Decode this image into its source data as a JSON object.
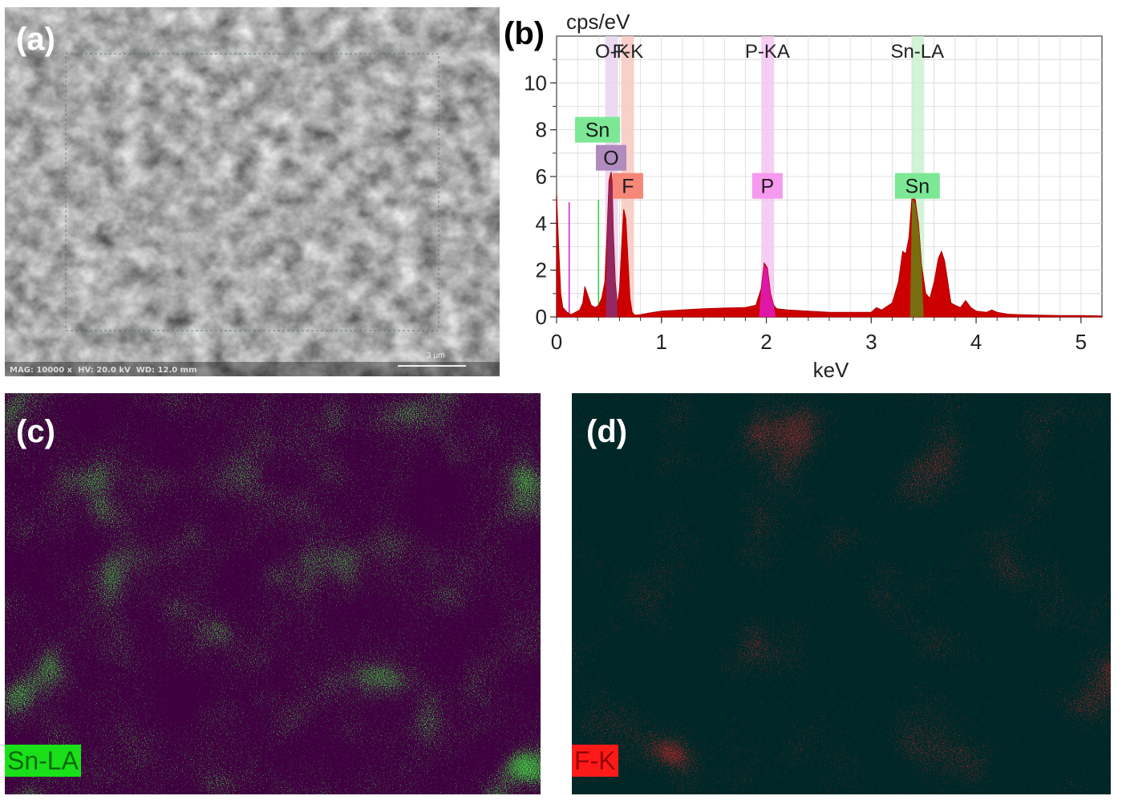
{
  "panels": {
    "a": {
      "letter": "(a)",
      "info": "MAG: 10000 x  HV: 20.0 kV  WD: 12.0 mm",
      "scale": "3 μm"
    },
    "b": {
      "letter": "(b)"
    },
    "c": {
      "letter": "(c)",
      "map_label": "Sn-LA",
      "color": "#22c322"
    },
    "d": {
      "letter": "(d)",
      "map_label": "F-K",
      "color": "#e51010"
    }
  },
  "chart_data": {
    "type": "line",
    "title": "",
    "xlabel": "keV",
    "ylabel": "cps/eV",
    "xlim": [
      0,
      5.2
    ],
    "ylim": [
      0,
      12
    ],
    "xticks": [
      0,
      1,
      2,
      3,
      4,
      5
    ],
    "yticks": [
      0,
      2,
      4,
      6,
      8,
      10
    ],
    "grid": true,
    "series": [
      {
        "name": "spectrum",
        "color": "#cc0000",
        "x": [
          0.0,
          0.02,
          0.04,
          0.06,
          0.1,
          0.14,
          0.18,
          0.22,
          0.25,
          0.27,
          0.3,
          0.33,
          0.37,
          0.4,
          0.43,
          0.46,
          0.48,
          0.5,
          0.52,
          0.53,
          0.54,
          0.56,
          0.58,
          0.6,
          0.62,
          0.64,
          0.66,
          0.68,
          0.7,
          0.72,
          0.74,
          0.76,
          0.8,
          0.9,
          1.0,
          1.2,
          1.4,
          1.6,
          1.8,
          1.9,
          1.95,
          1.98,
          2.01,
          2.04,
          2.07,
          2.1,
          2.2,
          2.4,
          2.6,
          2.8,
          3.0,
          3.05,
          3.1,
          3.2,
          3.26,
          3.3,
          3.33,
          3.36,
          3.39,
          3.42,
          3.45,
          3.48,
          3.52,
          3.56,
          3.6,
          3.64,
          3.67,
          3.7,
          3.73,
          3.76,
          3.8,
          3.85,
          3.9,
          3.95,
          4.0,
          4.1,
          4.15,
          4.2,
          4.3,
          4.4,
          4.6,
          4.8,
          5.0,
          5.2
        ],
        "y": [
          5.2,
          3.0,
          1.0,
          0.4,
          0.2,
          0.1,
          0.2,
          0.3,
          0.6,
          1.3,
          0.9,
          0.5,
          0.4,
          0.5,
          0.8,
          1.5,
          3.5,
          5.8,
          6.2,
          5.8,
          3.8,
          1.5,
          0.5,
          1.2,
          3.0,
          4.6,
          4.2,
          2.5,
          0.8,
          0.2,
          0.1,
          0.08,
          0.1,
          0.18,
          0.25,
          0.3,
          0.35,
          0.38,
          0.4,
          0.5,
          1.2,
          2.3,
          2.1,
          1.0,
          0.5,
          0.35,
          0.3,
          0.25,
          0.2,
          0.2,
          0.2,
          0.4,
          0.3,
          0.6,
          1.5,
          2.8,
          2.7,
          3.4,
          5.2,
          5.0,
          4.0,
          2.2,
          1.0,
          0.8,
          1.5,
          2.5,
          2.8,
          2.4,
          1.5,
          0.6,
          0.5,
          0.4,
          0.7,
          0.4,
          0.25,
          0.2,
          0.3,
          0.2,
          0.12,
          0.1,
          0.08,
          0.06,
          0.06,
          0.04
        ]
      }
    ],
    "element_lines": [
      {
        "label": "Sn",
        "type": "green",
        "energy": 0.4,
        "height": 5.0
      },
      {
        "label": "",
        "type": "magenta",
        "energy": 0.12,
        "height": 4.9
      }
    ],
    "line_labels": [
      {
        "label": "O-K",
        "energy": 0.53
      },
      {
        "label": "F-K",
        "energy": 0.68
      },
      {
        "label": "P-KA",
        "energy": 2.01
      },
      {
        "label": "Sn-LA",
        "energy": 3.44
      }
    ],
    "line_bands": [
      {
        "energy": 0.525,
        "color": "#e7d3ee"
      },
      {
        "energy": 0.677,
        "color": "#f7c8c0"
      },
      {
        "energy": 2.013,
        "color": "#f5c6f1"
      },
      {
        "energy": 3.444,
        "color": "#caf1d0"
      }
    ],
    "peak_boxes": [
      {
        "label": "Sn",
        "bg": "#7ce896",
        "energy": 0.39,
        "y": 8.0
      },
      {
        "label": "O",
        "bg": "#b08bbd",
        "energy": 0.52,
        "y": 6.8
      },
      {
        "label": "F",
        "bg": "#f78778",
        "energy": 0.68,
        "y": 5.6
      },
      {
        "label": "P",
        "bg": "#f59aee",
        "energy": 2.01,
        "y": 5.6
      },
      {
        "label": "Sn",
        "bg": "#7ce896",
        "energy": 3.44,
        "y": 5.6
      }
    ]
  }
}
